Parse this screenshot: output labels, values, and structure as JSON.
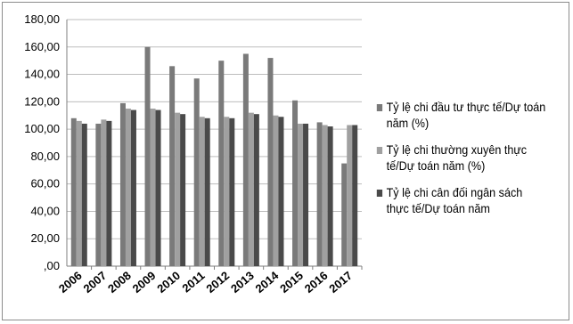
{
  "chart_data": {
    "type": "bar",
    "categories": [
      "2006",
      "2007",
      "2008",
      "2009",
      "2010",
      "2011",
      "2012",
      "2013",
      "2014",
      "2015",
      "2016",
      "2017"
    ],
    "series": [
      {
        "name": "Tỷ lệ chi đầu tư thực tế/Dự toán năm (%)",
        "values": [
          108,
          104,
          119,
          160,
          146,
          137,
          150,
          155,
          152,
          121,
          105,
          75
        ]
      },
      {
        "name": "Tỷ lệ chi thường xuyên thực tế/Dự toán năm (%)",
        "values": [
          106,
          107,
          115,
          115,
          112,
          109,
          109,
          112,
          110,
          104,
          103,
          103
        ]
      },
      {
        "name": "Tỷ lệ chi cân đối ngân sách thực tế/Dự toán năm",
        "values": [
          104,
          106,
          114,
          114,
          111,
          108,
          108,
          111,
          109,
          104,
          102,
          103
        ]
      }
    ],
    "yticks": [
      ",00",
      "20,00",
      "40,00",
      "60,00",
      "80,00",
      "100,00",
      "120,00",
      "140,00",
      "160,00",
      "180,00"
    ],
    "ylim": [
      0,
      180
    ],
    "grid": true,
    "legend_position": "right",
    "colors": [
      "#7a7a7a",
      "#a0a0a0",
      "#4a4a4a"
    ]
  }
}
